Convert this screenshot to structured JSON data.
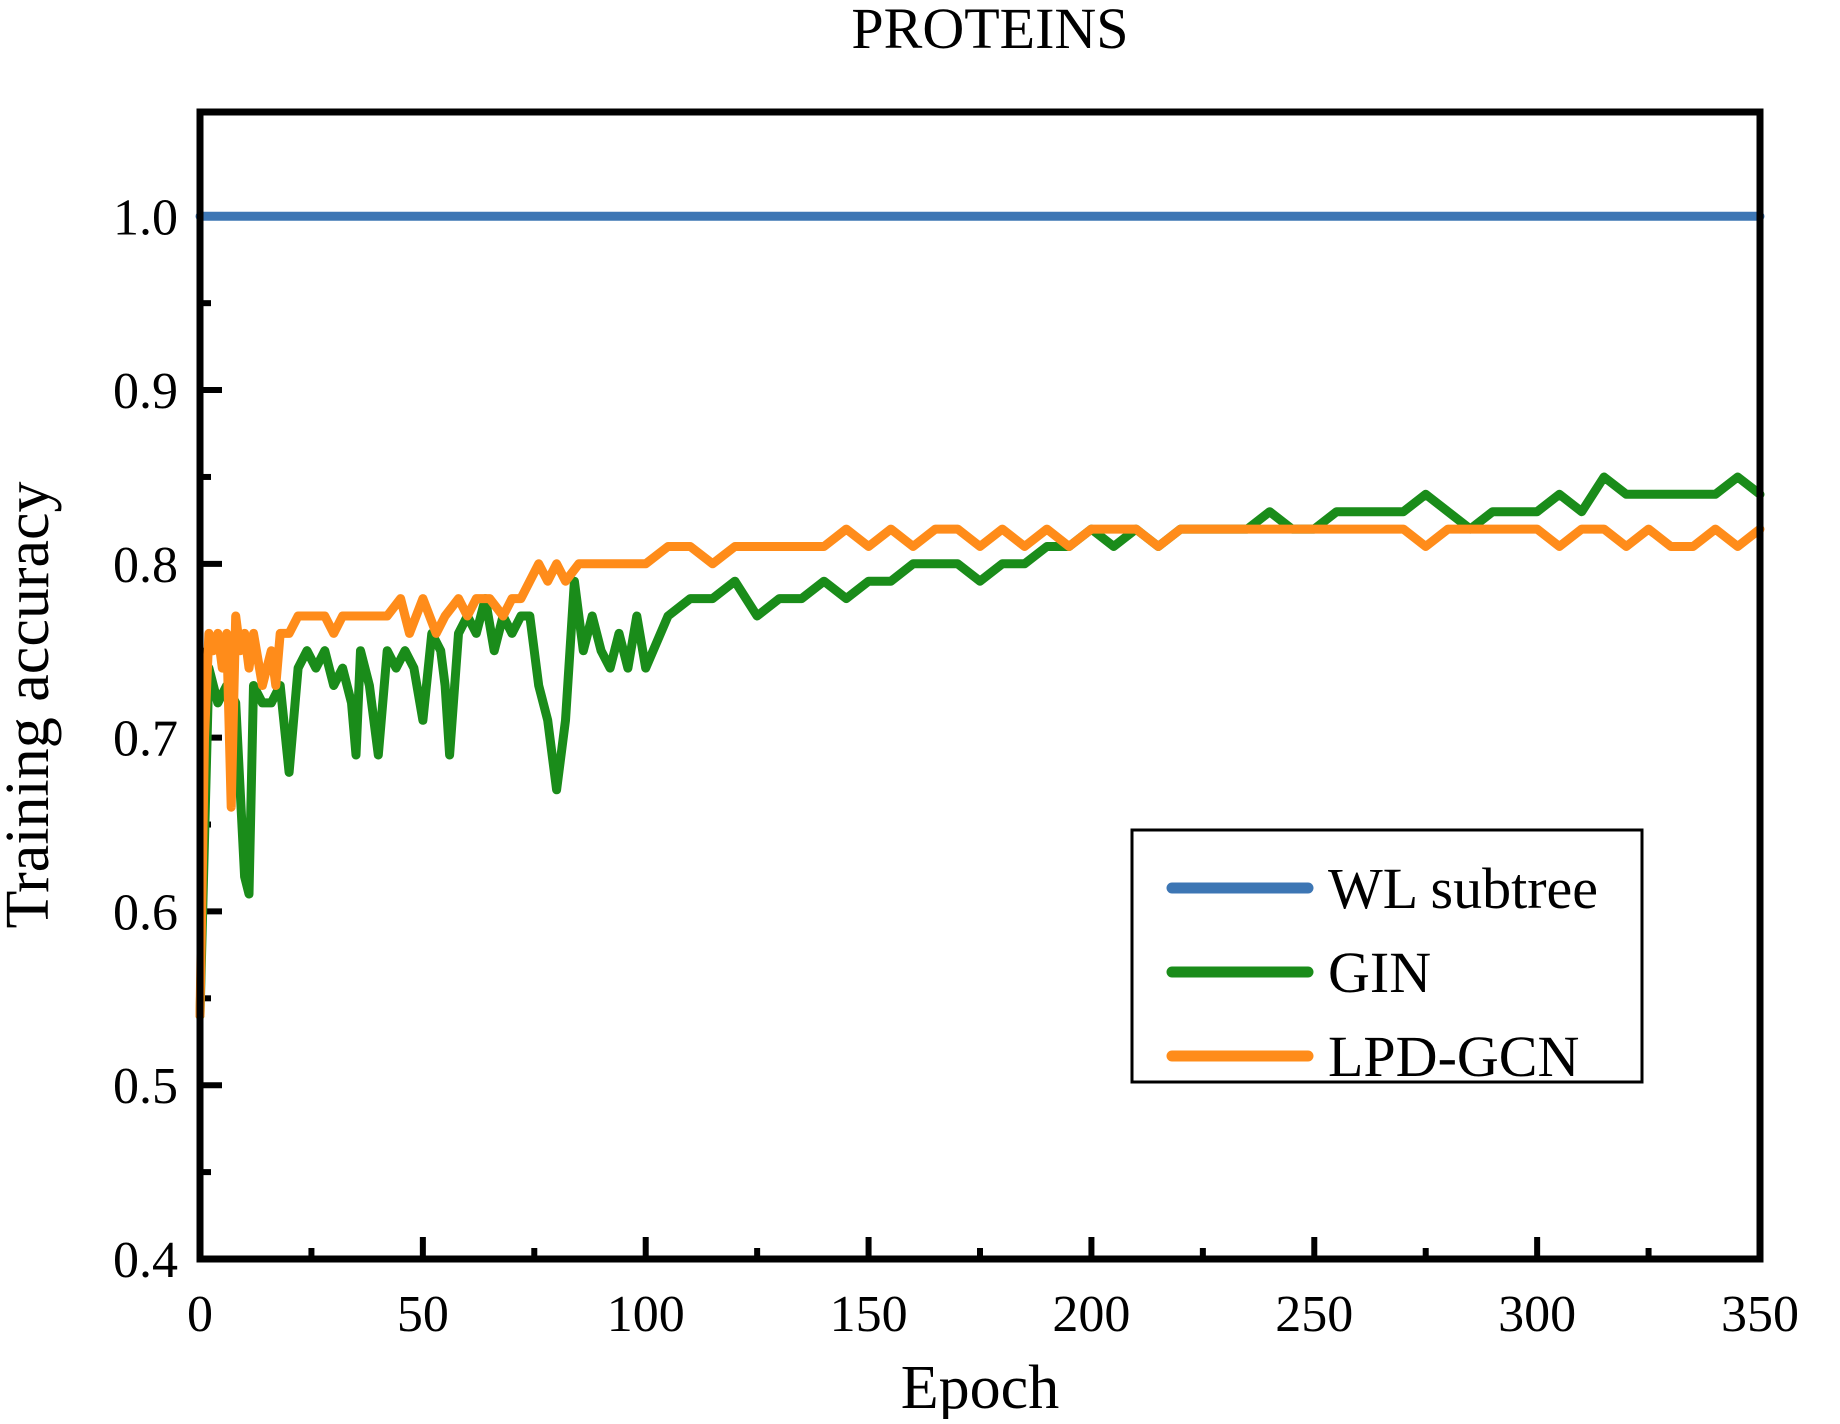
{
  "chart_data": {
    "type": "line",
    "title": "PROTEINS",
    "xlabel": "Epoch",
    "ylabel": "Training accuracy",
    "xlim": [
      0,
      350
    ],
    "ylim": [
      0.4,
      1.06
    ],
    "x_ticks": [
      0,
      50,
      100,
      150,
      200,
      250,
      300,
      350
    ],
    "x_tick_labels": [
      "0",
      "50",
      "100",
      "150",
      "200",
      "250",
      "300",
      "350"
    ],
    "y_ticks": [
      0.4,
      0.5,
      0.6,
      0.7,
      0.8,
      0.9,
      1.0
    ],
    "y_tick_labels": [
      "0.4",
      "0.5",
      "0.6",
      "0.7",
      "0.8",
      "0.9",
      "1.0"
    ],
    "grid": false,
    "legend_position": "lower-right",
    "series": [
      {
        "name": "WL subtree",
        "color": "#3d76b4",
        "x": [
          0,
          350
        ],
        "y": [
          1.0,
          1.0
        ]
      },
      {
        "name": "GIN",
        "color": "#1a8c1a",
        "x": [
          0,
          2,
          4,
          6,
          8,
          10,
          11,
          12,
          14,
          16,
          18,
          20,
          22,
          24,
          26,
          28,
          30,
          32,
          34,
          35,
          36,
          38,
          40,
          42,
          44,
          46,
          48,
          50,
          52,
          54,
          55,
          56,
          58,
          60,
          62,
          64,
          66,
          68,
          70,
          72,
          74,
          76,
          78,
          80,
          82,
          84,
          86,
          88,
          90,
          92,
          94,
          96,
          98,
          100,
          105,
          110,
          115,
          120,
          125,
          130,
          135,
          140,
          145,
          150,
          155,
          160,
          165,
          170,
          175,
          180,
          185,
          190,
          195,
          200,
          205,
          210,
          215,
          220,
          225,
          230,
          235,
          240,
          245,
          250,
          255,
          260,
          265,
          270,
          275,
          280,
          285,
          290,
          295,
          300,
          305,
          310,
          315,
          320,
          325,
          330,
          335,
          340,
          345,
          350
        ],
        "y": [
          0.54,
          0.74,
          0.72,
          0.73,
          0.72,
          0.62,
          0.61,
          0.73,
          0.72,
          0.72,
          0.73,
          0.68,
          0.74,
          0.75,
          0.74,
          0.75,
          0.73,
          0.74,
          0.72,
          0.69,
          0.75,
          0.73,
          0.69,
          0.75,
          0.74,
          0.75,
          0.74,
          0.71,
          0.76,
          0.75,
          0.73,
          0.69,
          0.76,
          0.77,
          0.76,
          0.78,
          0.75,
          0.77,
          0.76,
          0.77,
          0.77,
          0.73,
          0.71,
          0.67,
          0.71,
          0.79,
          0.75,
          0.77,
          0.75,
          0.74,
          0.76,
          0.74,
          0.77,
          0.74,
          0.77,
          0.78,
          0.78,
          0.79,
          0.77,
          0.78,
          0.78,
          0.79,
          0.78,
          0.79,
          0.79,
          0.8,
          0.8,
          0.8,
          0.79,
          0.8,
          0.8,
          0.81,
          0.81,
          0.82,
          0.81,
          0.82,
          0.81,
          0.82,
          0.82,
          0.82,
          0.82,
          0.83,
          0.82,
          0.82,
          0.83,
          0.83,
          0.83,
          0.83,
          0.84,
          0.83,
          0.82,
          0.83,
          0.83,
          0.83,
          0.84,
          0.83,
          0.85,
          0.84,
          0.84,
          0.84,
          0.84,
          0.84,
          0.85,
          0.84
        ]
      },
      {
        "name": "LPD-GCN",
        "color": "#ff8c1a",
        "x": [
          0,
          1,
          2,
          3,
          4,
          5,
          6,
          7,
          8,
          9,
          10,
          11,
          12,
          14,
          16,
          17,
          18,
          20,
          22,
          25,
          28,
          30,
          32,
          35,
          38,
          40,
          42,
          45,
          47,
          50,
          53,
          55,
          58,
          60,
          62,
          65,
          68,
          70,
          72,
          74,
          76,
          78,
          80,
          82,
          85,
          90,
          95,
          100,
          105,
          110,
          115,
          120,
          125,
          130,
          135,
          140,
          145,
          150,
          155,
          160,
          165,
          170,
          175,
          180,
          185,
          190,
          195,
          200,
          205,
          210,
          215,
          220,
          225,
          230,
          235,
          240,
          245,
          250,
          255,
          260,
          265,
          270,
          275,
          280,
          285,
          290,
          295,
          300,
          305,
          310,
          315,
          320,
          325,
          330,
          335,
          340,
          345,
          350
        ],
        "y": [
          0.54,
          0.7,
          0.76,
          0.75,
          0.76,
          0.74,
          0.76,
          0.66,
          0.77,
          0.75,
          0.76,
          0.74,
          0.76,
          0.73,
          0.75,
          0.73,
          0.76,
          0.76,
          0.77,
          0.77,
          0.77,
          0.76,
          0.77,
          0.77,
          0.77,
          0.77,
          0.77,
          0.78,
          0.76,
          0.78,
          0.76,
          0.77,
          0.78,
          0.77,
          0.78,
          0.78,
          0.77,
          0.78,
          0.78,
          0.79,
          0.8,
          0.79,
          0.8,
          0.79,
          0.8,
          0.8,
          0.8,
          0.8,
          0.81,
          0.81,
          0.8,
          0.81,
          0.81,
          0.81,
          0.81,
          0.81,
          0.82,
          0.81,
          0.82,
          0.81,
          0.82,
          0.82,
          0.81,
          0.82,
          0.81,
          0.82,
          0.81,
          0.82,
          0.82,
          0.82,
          0.81,
          0.82,
          0.82,
          0.82,
          0.82,
          0.82,
          0.82,
          0.82,
          0.82,
          0.82,
          0.82,
          0.82,
          0.81,
          0.82,
          0.82,
          0.82,
          0.82,
          0.82,
          0.81,
          0.82,
          0.82,
          0.81,
          0.82,
          0.81,
          0.81,
          0.82,
          0.81,
          0.82
        ]
      }
    ]
  }
}
